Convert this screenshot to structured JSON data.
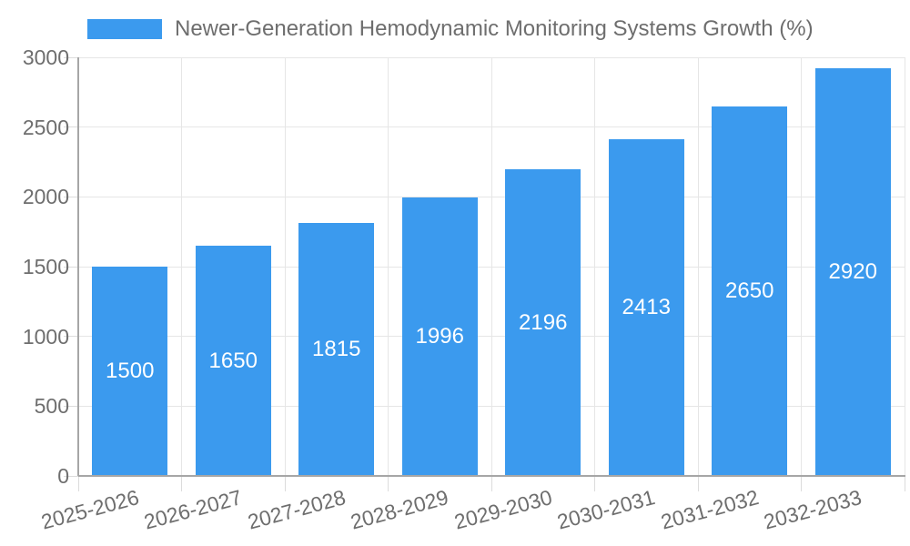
{
  "chart_data": {
    "type": "bar",
    "title": "Newer-Generation Hemodynamic Monitoring Systems Growth (%)",
    "legend": {
      "position": "top",
      "entries": [
        "Newer-Generation Hemodynamic Monitoring Systems Growth (%)"
      ]
    },
    "categories": [
      "2025-2026",
      "2026-2027",
      "2027-2028",
      "2028-2029",
      "2029-2030",
      "2030-2031",
      "2031-2032",
      "2032-2033"
    ],
    "values": [
      1500,
      1650,
      1815,
      1996,
      2196,
      2413,
      2650,
      2920
    ],
    "value_labels": [
      "1500",
      "1650",
      "1815",
      "1996",
      "2196",
      "2413",
      "2650",
      "2920"
    ],
    "xlabel": "",
    "ylabel": "",
    "ylim": [
      0,
      3000
    ],
    "yticks": [
      0,
      500,
      1000,
      1500,
      2000,
      2500,
      3000
    ],
    "ytick_labels": [
      "0",
      "500",
      "1000",
      "1500",
      "2000",
      "2500",
      "3000"
    ],
    "grid": true,
    "x_label_rotation_deg": -15,
    "colors": {
      "bar": "#3B9AEE",
      "tick_text": "#6e6e6e",
      "legend_text": "#6e6e6e",
      "value_text": "#ffffff",
      "gridline": "#e6e6e6",
      "tick_mark": "#dcdcdc",
      "axis_line": "#a6a6a6",
      "background": "#ffffff"
    }
  }
}
